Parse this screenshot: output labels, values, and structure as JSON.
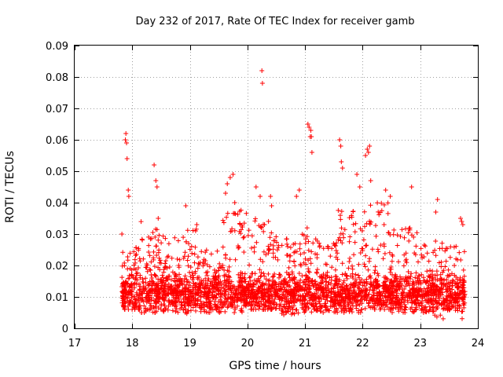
{
  "chart_data": {
    "type": "scatter",
    "title": "Day 232 of 2017, Rate Of TEC Index for receiver gamb",
    "xlabel": "GPS time / hours",
    "ylabel": "ROTI / TECUs",
    "xlim": [
      17,
      24
    ],
    "ylim": [
      0,
      0.09
    ],
    "x_ticks": [
      17,
      18,
      19,
      20,
      21,
      22,
      23,
      24
    ],
    "x_tick_labels": [
      "17",
      "18",
      "19",
      "20",
      "21",
      "22",
      "23",
      "24"
    ],
    "y_ticks": [
      0,
      0.01,
      0.02,
      0.03,
      0.04,
      0.05,
      0.06,
      0.07,
      0.08,
      0.09
    ],
    "y_tick_labels": [
      "0",
      "0.01",
      "0.02",
      "0.03",
      "0.04",
      "0.05",
      "0.06",
      "0.07",
      "0.08",
      "0.09"
    ],
    "grid": true,
    "marker": "+",
    "color": "#ff0000",
    "series": [
      {
        "name": "ROTI",
        "points": [
          [
            17.82,
            0.03
          ],
          [
            17.88,
            0.06
          ],
          [
            17.89,
            0.062
          ],
          [
            17.9,
            0.059
          ],
          [
            17.91,
            0.054
          ],
          [
            17.93,
            0.044
          ],
          [
            17.94,
            0.042
          ],
          [
            18.38,
            0.052
          ],
          [
            18.41,
            0.047
          ],
          [
            18.43,
            0.045
          ],
          [
            18.45,
            0.035
          ],
          [
            18.93,
            0.039
          ],
          [
            19.12,
            0.033
          ],
          [
            19.1,
            0.031
          ],
          [
            19.62,
            0.043
          ],
          [
            19.65,
            0.046
          ],
          [
            19.7,
            0.048
          ],
          [
            19.75,
            0.049
          ],
          [
            19.78,
            0.04
          ],
          [
            20.15,
            0.045
          ],
          [
            20.22,
            0.042
          ],
          [
            20.25,
            0.082
          ],
          [
            20.26,
            0.078
          ],
          [
            20.4,
            0.042
          ],
          [
            20.42,
            0.039
          ],
          [
            20.9,
            0.044
          ],
          [
            20.85,
            0.042
          ],
          [
            21.05,
            0.065
          ],
          [
            21.07,
            0.064
          ],
          [
            21.09,
            0.061
          ],
          [
            21.1,
            0.063
          ],
          [
            21.11,
            0.061
          ],
          [
            21.12,
            0.056
          ],
          [
            21.6,
            0.06
          ],
          [
            21.62,
            0.058
          ],
          [
            21.63,
            0.053
          ],
          [
            21.65,
            0.051
          ],
          [
            21.9,
            0.049
          ],
          [
            21.95,
            0.045
          ],
          [
            22.05,
            0.055
          ],
          [
            22.08,
            0.057
          ],
          [
            22.1,
            0.056
          ],
          [
            22.12,
            0.058
          ],
          [
            22.14,
            0.047
          ],
          [
            22.4,
            0.044
          ],
          [
            22.48,
            0.042
          ],
          [
            22.85,
            0.045
          ],
          [
            23.3,
            0.041
          ],
          [
            23.27,
            0.037
          ],
          [
            23.7,
            0.035
          ],
          [
            23.72,
            0.034
          ],
          [
            23.74,
            0.033
          ]
        ]
      }
    ],
    "dense_bands": [
      {
        "x": [
          17.82,
          18.15
        ],
        "y": [
          0.006,
          0.026
        ]
      },
      {
        "x": [
          18.15,
          18.45
        ],
        "y": [
          0.005,
          0.034
        ]
      },
      {
        "x": [
          18.45,
          18.9
        ],
        "y": [
          0.005,
          0.03
        ]
      },
      {
        "x": [
          18.9,
          19.15
        ],
        "y": [
          0.004,
          0.032
        ]
      },
      {
        "x": [
          19.15,
          19.55
        ],
        "y": [
          0.005,
          0.025
        ]
      },
      {
        "x": [
          19.55,
          20.0
        ],
        "y": [
          0.005,
          0.038
        ]
      },
      {
        "x": [
          20.0,
          20.45
        ],
        "y": [
          0.006,
          0.035
        ]
      },
      {
        "x": [
          20.45,
          20.95
        ],
        "y": [
          0.004,
          0.03
        ]
      },
      {
        "x": [
          20.95,
          21.2
        ],
        "y": [
          0.005,
          0.034
        ]
      },
      {
        "x": [
          21.2,
          21.55
        ],
        "y": [
          0.005,
          0.028
        ]
      },
      {
        "x": [
          21.55,
          22.05
        ],
        "y": [
          0.005,
          0.038
        ]
      },
      {
        "x": [
          22.05,
          22.5
        ],
        "y": [
          0.006,
          0.04
        ]
      },
      {
        "x": [
          22.5,
          23.0
        ],
        "y": [
          0.005,
          0.032
        ]
      },
      {
        "x": [
          23.0,
          23.25
        ],
        "y": [
          0.005,
          0.027
        ]
      },
      {
        "x": [
          23.25,
          23.78
        ],
        "y": [
          0.003,
          0.028
        ]
      }
    ]
  }
}
